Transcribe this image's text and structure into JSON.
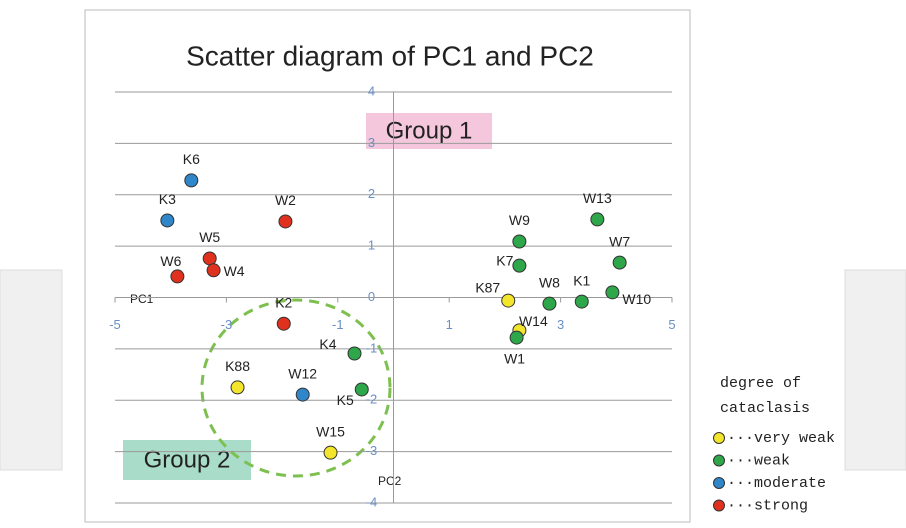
{
  "chart_data": {
    "type": "scatter",
    "title": "Scatter diagram of PC1 and PC2",
    "xlabel": "PC1",
    "ylabel": "PC2",
    "annotations": [
      "Group 1",
      "Group 2"
    ],
    "legend_title": [
      "degree of",
      "cataclasis"
    ],
    "xlim": [
      -5,
      5
    ],
    "ylim": [
      -4,
      4
    ],
    "xticks": [
      -5,
      -3,
      -1,
      1,
      3,
      5
    ],
    "yticks": [
      -4,
      -3,
      -2,
      -1,
      0,
      1,
      2,
      3,
      4
    ],
    "grid": true,
    "series": [
      {
        "name": "···very weak",
        "color": "#f3e52c",
        "labels": [
          "K88",
          "W15",
          "K87",
          "W14"
        ],
        "x": [
          -2.8,
          -1.13,
          2.06,
          2.26
        ],
        "values": [
          -1.75,
          -3.02,
          -0.06,
          -0.64
        ]
      },
      {
        "name": "···weak",
        "color": "#2ea64a",
        "labels": [
          "K4",
          "K5",
          "W9",
          "W13",
          "K7",
          "W7",
          "W8",
          "K1",
          "W10",
          "W1"
        ],
        "x": [
          -0.7,
          -0.57,
          2.26,
          3.66,
          2.26,
          4.06,
          2.8,
          3.38,
          3.93,
          2.21
        ],
        "values": [
          -1.09,
          -1.79,
          1.09,
          1.52,
          0.62,
          0.68,
          -0.12,
          -0.08,
          0.1,
          -0.78
        ]
      },
      {
        "name": "···moderate",
        "color": "#2f86c8",
        "labels": [
          "K6",
          "K3",
          "W12"
        ],
        "x": [
          -3.63,
          -4.06,
          -1.63
        ],
        "values": [
          2.28,
          1.5,
          -1.89
        ]
      },
      {
        "name": "···strong",
        "color": "#e0311f",
        "labels": [
          "W2",
          "W5",
          "W4",
          "W6",
          "K2"
        ],
        "x": [
          -1.94,
          -3.3,
          -3.23,
          -3.88,
          -1.97
        ],
        "values": [
          1.48,
          0.76,
          0.53,
          0.41,
          -0.51
        ]
      }
    ]
  }
}
